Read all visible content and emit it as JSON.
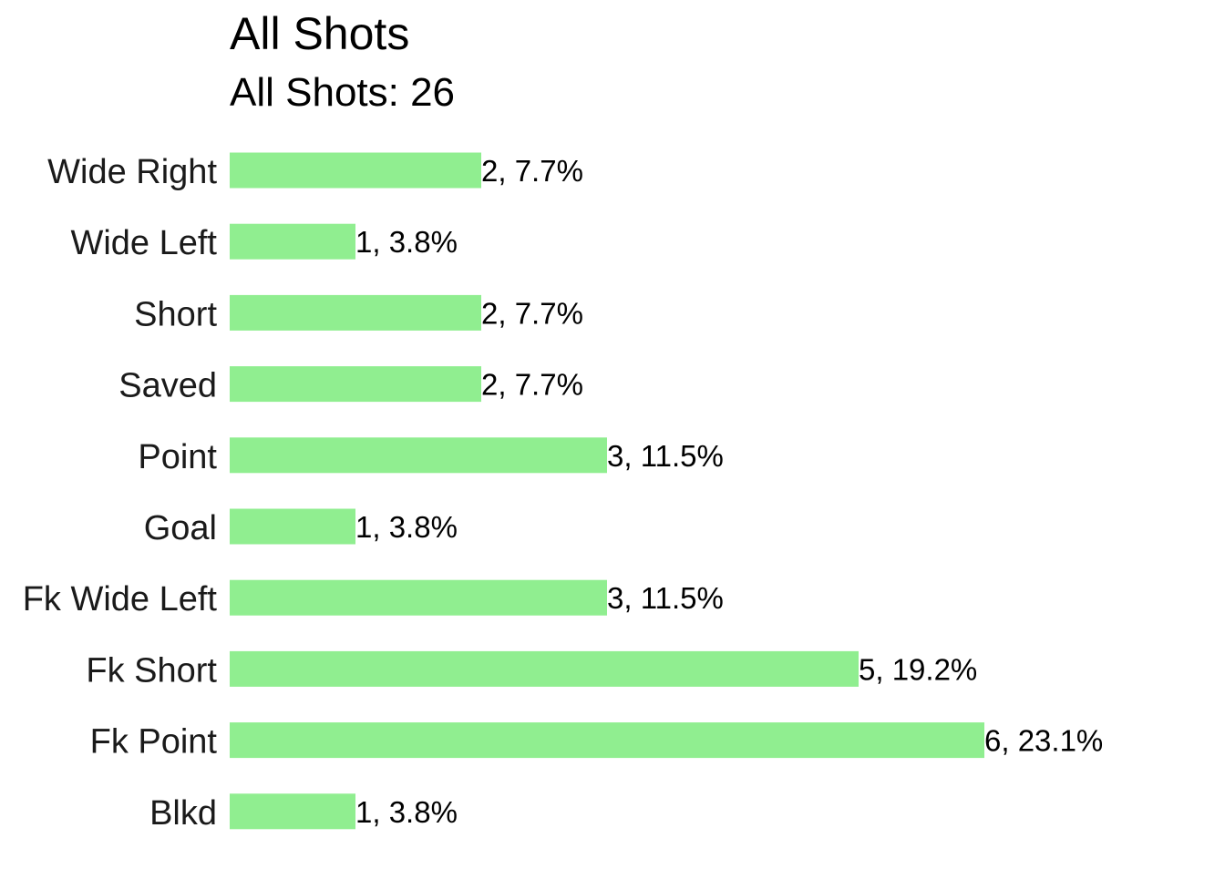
{
  "chart_data": {
    "type": "bar",
    "orientation": "horizontal",
    "title": "All Shots",
    "subtitle": "All Shots: 26",
    "categories": [
      "Wide Right",
      "Wide Left",
      "Short",
      "Saved",
      "Point",
      "Goal",
      "Fk Wide Left",
      "Fk Short",
      "Fk Point",
      "Blkd"
    ],
    "values": [
      2,
      1,
      2,
      2,
      3,
      1,
      3,
      5,
      6,
      1
    ],
    "labels": [
      "2, 7.7%",
      "1, 3.8%",
      "2, 7.7%",
      "2, 7.7%",
      "3, 11.5%",
      "1, 3.8%",
      "3, 11.5%",
      "5, 19.2%",
      "6, 23.1%",
      "1, 3.8%"
    ],
    "bar_color": "#90EE90",
    "grid": false,
    "legend": "none",
    "xlabel": "",
    "ylabel": "",
    "xlim": [
      0,
      6.6
    ]
  }
}
